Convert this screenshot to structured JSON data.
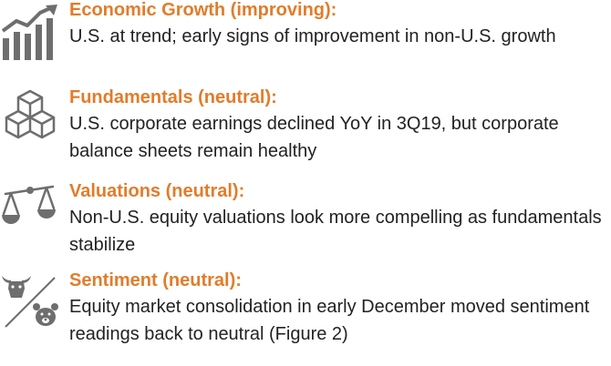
{
  "colors": {
    "heading": "#e27c2b",
    "body": "#222222",
    "icon": "#6e6e6e"
  },
  "items": [
    {
      "icon": "bar-chart-growth-icon",
      "heading": "Economic Growth (improving):",
      "body": "U.S. at trend; early signs of improvement in non-U.S. growth"
    },
    {
      "icon": "stacked-cubes-icon",
      "heading": "Fundamentals (neutral):",
      "body": "U.S. corporate earnings declined YoY in 3Q19, but corporate balance sheets remain healthy"
    },
    {
      "icon": "balance-scale-icon",
      "heading": "Valuations (neutral):",
      "body": "Non-U.S. equity valuations look more compelling as fundamentals stabilize"
    },
    {
      "icon": "bull-bear-icon",
      "heading": "Sentiment (neutral):",
      "body": "Equity market consolidation in early December moved sentiment readings back to neutral (Figure 2)"
    }
  ]
}
